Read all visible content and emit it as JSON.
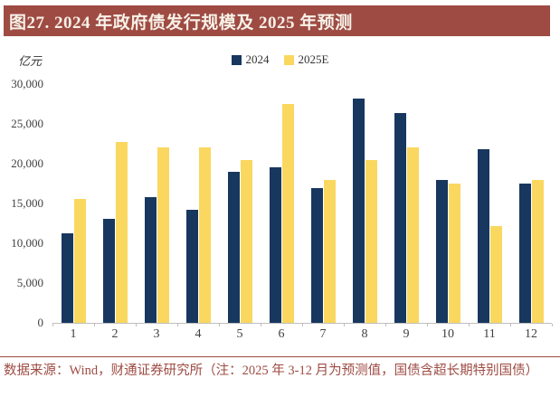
{
  "title": "图27.  2024 年政府债发行规模及 2025 年预测",
  "unit_label": "亿元",
  "legend": [
    {
      "label": "2024",
      "color": "#17375E"
    },
    {
      "label": "2025E",
      "color": "#FAD75F"
    }
  ],
  "chart_data": {
    "type": "bar",
    "title": "2024 年政府债发行规模及 2025 年预测",
    "categories": [
      "1",
      "2",
      "3",
      "4",
      "5",
      "6",
      "7",
      "8",
      "9",
      "10",
      "11",
      "12"
    ],
    "series": [
      {
        "name": "2024",
        "color": "#17375E",
        "values": [
          11300,
          13100,
          15800,
          14200,
          19000,
          19500,
          16900,
          28200,
          26400,
          18000,
          21800,
          17500
        ]
      },
      {
        "name": "2025E",
        "color": "#FAD75F",
        "values": [
          15600,
          22700,
          22000,
          22000,
          20500,
          27500,
          18000,
          20500,
          22000,
          17500,
          12200,
          18000
        ]
      }
    ],
    "xlabel": "",
    "ylabel": "亿元",
    "ylim": [
      0,
      30000
    ],
    "yticks": [
      0,
      5000,
      10000,
      15000,
      20000,
      25000,
      30000
    ],
    "grid": false,
    "legend_position": "top-center"
  },
  "footer": {
    "source_text": "数据来源：Wind，财通证券研究所（注：2025 年 3-12 月为预测值，国债含超长期特别国债）"
  },
  "colors": {
    "header_bg": "#9E4B43",
    "header_text": "#F7F1E8",
    "footer_text": "#9E4B43",
    "footer_rule": "#9E4B43",
    "axis_line": "#BFBFBF",
    "tick_text": "#404040"
  }
}
